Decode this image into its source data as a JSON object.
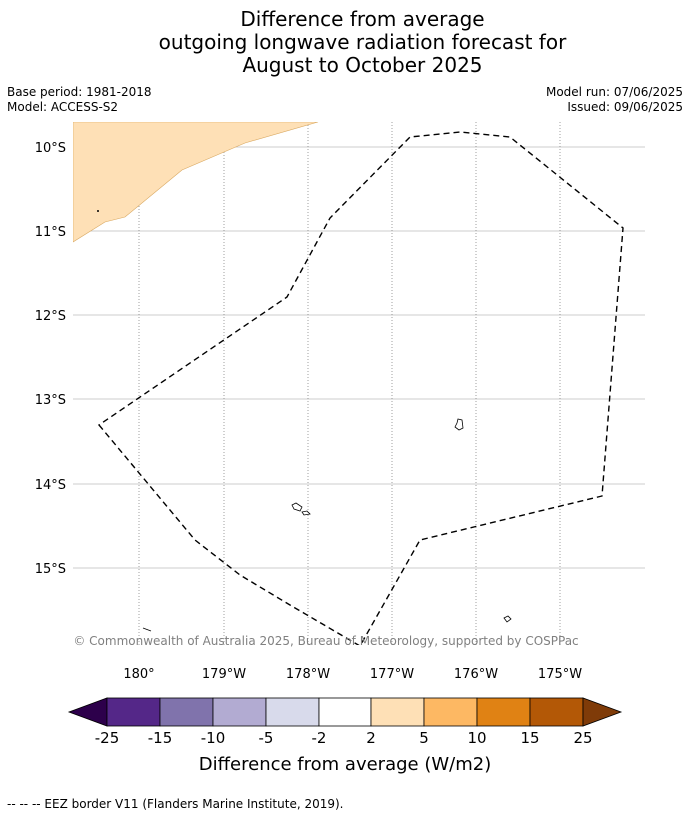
{
  "title": {
    "line1": "Difference from average",
    "line2": "outgoing longwave radiation forecast for",
    "line3": "August to October 2025"
  },
  "meta": {
    "base_period": "Base period: 1981-2018",
    "model": "Model: ACCESS-S2",
    "model_run": "Model run: 07/06/2025",
    "issued": "Issued: 09/06/2025"
  },
  "map": {
    "lat_labels": [
      "10°S",
      "11°S",
      "12°S",
      "13°S",
      "14°S",
      "15°S"
    ],
    "lon_labels": [
      "180°",
      "179°W",
      "178°W",
      "177°W",
      "176°W",
      "175°W"
    ],
    "copyright": "© Commonwealth of Australia 2025, Bureau of Meteorology, supported by COSPPac",
    "anomaly_region_color": "#fee0b6",
    "eez_border": "dashed"
  },
  "colorbar": {
    "label": "Difference from average (W/m2)",
    "ticks": [
      "-25",
      "-15",
      "-10",
      "-5",
      "-2",
      "2",
      "5",
      "10",
      "15",
      "25"
    ],
    "colors": [
      "#2d004b",
      "#542788",
      "#8073ac",
      "#b2abd2",
      "#d8daeb",
      "#ffffff",
      "#fee0b6",
      "#fdb863",
      "#e08214",
      "#b35806",
      "#7f3b08"
    ]
  },
  "footer": {
    "legend": "--  --  -- EEZ border V11 (Flanders Marine Institute, 2019)."
  }
}
